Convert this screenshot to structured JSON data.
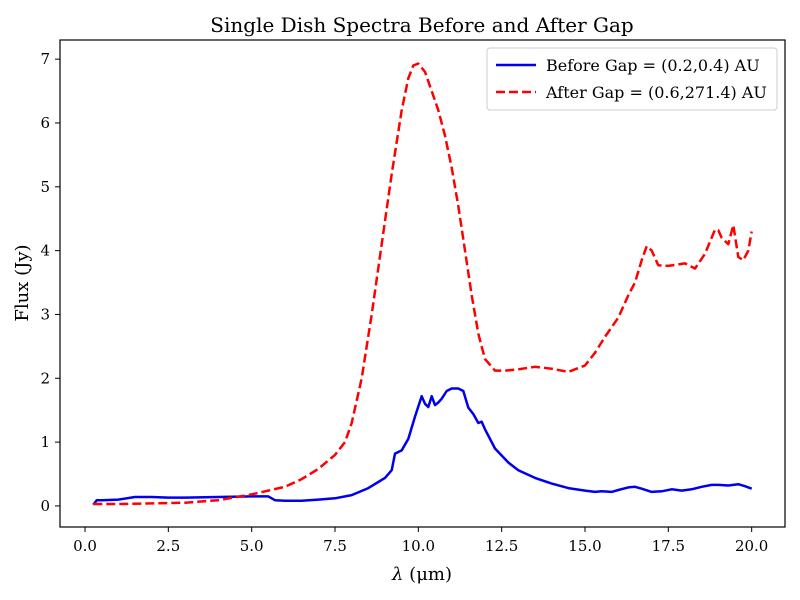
{
  "chart_data": {
    "type": "line",
    "title": "Single Dish Spectra Before and After Gap",
    "xlabel_symbol": "λ",
    "xlabel": "(μm)",
    "ylabel": "Flux (Jy)",
    "xlim": [
      -0.75,
      21.0
    ],
    "ylim": [
      -0.33,
      7.3
    ],
    "xticks": [
      "0.0",
      "2.5",
      "5.0",
      "7.5",
      "10.0",
      "12.5",
      "15.0",
      "17.5",
      "20.0"
    ],
    "yticks": [
      "0",
      "1",
      "2",
      "3",
      "4",
      "5",
      "6",
      "7"
    ],
    "legend_position": "top-right",
    "series": [
      {
        "name": "Before Gap = (0.2,0.4) AU",
        "color": "#0000ee",
        "dash": "solid",
        "x": [
          0.25,
          0.35,
          0.5,
          1.0,
          1.5,
          2.0,
          2.5,
          3.0,
          4.0,
          5.0,
          5.5,
          5.7,
          6.0,
          6.5,
          7.0,
          7.5,
          8.0,
          8.5,
          9.0,
          9.2,
          9.3,
          9.5,
          9.7,
          9.9,
          10.1,
          10.2,
          10.3,
          10.4,
          10.5,
          10.6,
          10.7,
          10.85,
          11.0,
          11.2,
          11.35,
          11.5,
          11.65,
          11.8,
          11.9,
          12.0,
          12.3,
          12.7,
          13.0,
          13.5,
          14.0,
          14.5,
          15.0,
          15.3,
          15.5,
          15.8,
          16.0,
          16.3,
          16.5,
          16.7,
          17.0,
          17.3,
          17.6,
          17.9,
          18.2,
          18.5,
          18.8,
          19.0,
          19.3,
          19.6,
          19.8,
          20.0
        ],
        "y": [
          0.02,
          0.09,
          0.09,
          0.1,
          0.14,
          0.14,
          0.13,
          0.13,
          0.14,
          0.15,
          0.15,
          0.09,
          0.08,
          0.08,
          0.1,
          0.12,
          0.17,
          0.28,
          0.44,
          0.56,
          0.82,
          0.87,
          1.05,
          1.4,
          1.72,
          1.6,
          1.55,
          1.72,
          1.58,
          1.62,
          1.68,
          1.8,
          1.84,
          1.84,
          1.8,
          1.54,
          1.44,
          1.3,
          1.32,
          1.2,
          0.9,
          0.68,
          0.56,
          0.44,
          0.35,
          0.28,
          0.24,
          0.22,
          0.23,
          0.22,
          0.25,
          0.29,
          0.3,
          0.27,
          0.22,
          0.23,
          0.26,
          0.24,
          0.26,
          0.3,
          0.33,
          0.33,
          0.32,
          0.34,
          0.31,
          0.27
        ]
      },
      {
        "name": "After Gap = (0.6,271.4) AU",
        "color": "#ff0000",
        "dash": "dashed",
        "x": [
          0.25,
          1.0,
          2.0,
          3.0,
          4.0,
          5.0,
          5.5,
          6.0,
          6.5,
          7.0,
          7.5,
          7.8,
          8.0,
          8.3,
          8.6,
          8.9,
          9.2,
          9.5,
          9.7,
          9.85,
          10.0,
          10.2,
          10.4,
          10.6,
          10.8,
          11.0,
          11.2,
          11.4,
          11.6,
          11.8,
          12.0,
          12.3,
          12.6,
          13.0,
          13.5,
          14.0,
          14.5,
          15.0,
          15.3,
          15.6,
          16.0,
          16.3,
          16.5,
          16.7,
          16.85,
          17.0,
          17.2,
          17.5,
          18.0,
          18.3,
          18.6,
          18.9,
          19.0,
          19.1,
          19.3,
          19.45,
          19.6,
          19.75,
          19.9,
          20.0
        ],
        "y": [
          0.03,
          0.03,
          0.04,
          0.05,
          0.09,
          0.18,
          0.24,
          0.3,
          0.42,
          0.58,
          0.8,
          1.0,
          1.3,
          2.0,
          3.0,
          4.1,
          5.2,
          6.2,
          6.7,
          6.9,
          6.93,
          6.8,
          6.5,
          6.2,
          5.8,
          5.3,
          4.7,
          4.0,
          3.3,
          2.7,
          2.3,
          2.12,
          2.12,
          2.14,
          2.18,
          2.15,
          2.1,
          2.2,
          2.4,
          2.65,
          2.95,
          3.3,
          3.5,
          3.85,
          4.07,
          4.0,
          3.77,
          3.76,
          3.8,
          3.72,
          3.95,
          4.33,
          4.32,
          4.2,
          4.1,
          4.4,
          3.9,
          3.85,
          4.0,
          4.3
        ]
      }
    ]
  }
}
